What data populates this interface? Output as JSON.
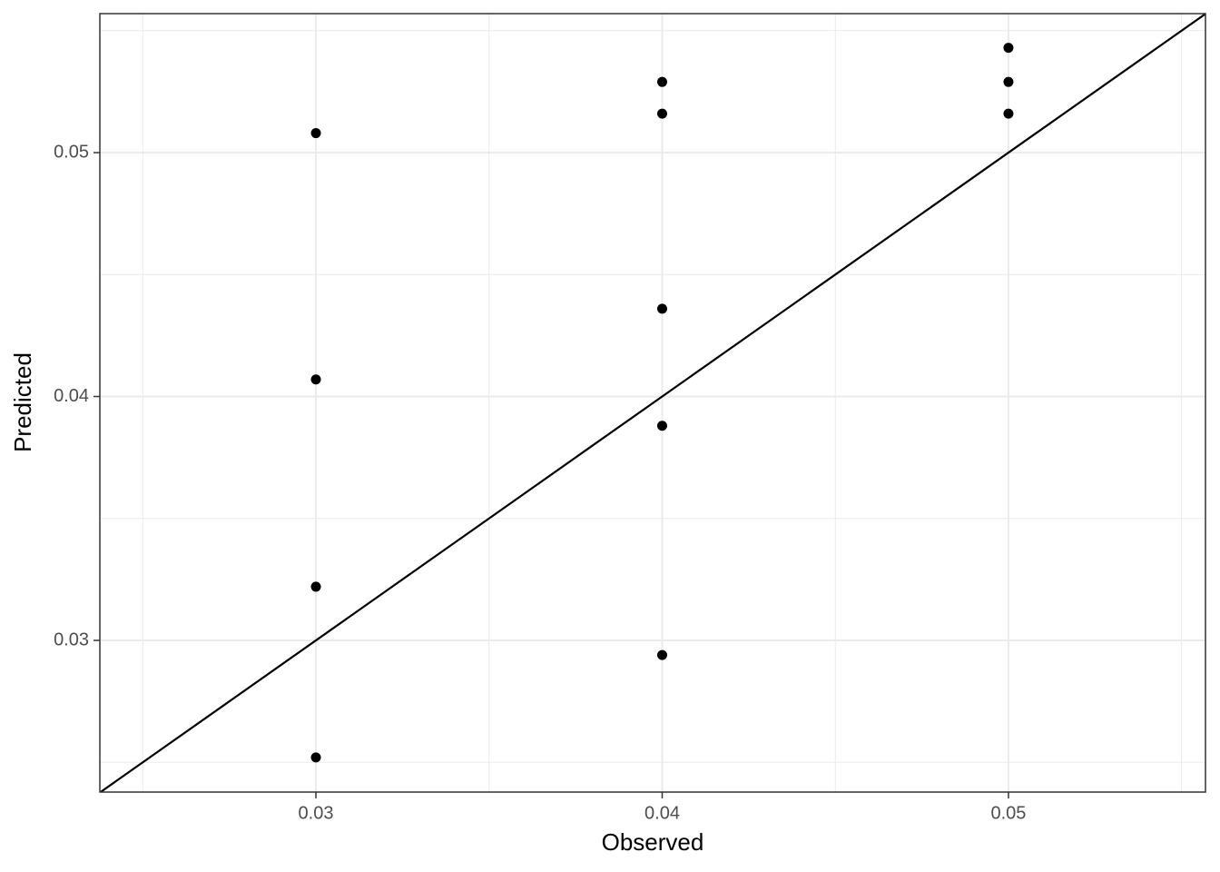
{
  "chart_data": {
    "type": "scatter",
    "x_label": "Observed",
    "y_label": "Predicted",
    "x": [
      0.03,
      0.03,
      0.03,
      0.03,
      0.04,
      0.04,
      0.04,
      0.04,
      0.04,
      0.05,
      0.05,
      0.05
    ],
    "values": [
      0.0508,
      0.0407,
      0.0322,
      0.0252,
      0.0529,
      0.0516,
      0.0436,
      0.0388,
      0.0294,
      0.0543,
      0.0529,
      0.0516
    ],
    "color": "#000000",
    "xlim": [
      0.02376,
      0.05569
    ],
    "ylim": [
      0.02378,
      0.0557
    ],
    "xticks": [
      0.03,
      0.04,
      0.05
    ],
    "yticks": [
      0.03,
      0.04,
      0.05
    ],
    "minor_xticks": [
      0.025,
      0.035,
      0.045,
      0.055
    ],
    "minor_yticks": [
      0.025,
      0.035,
      0.045,
      0.055
    ],
    "grid": true,
    "identity_line": true
  }
}
